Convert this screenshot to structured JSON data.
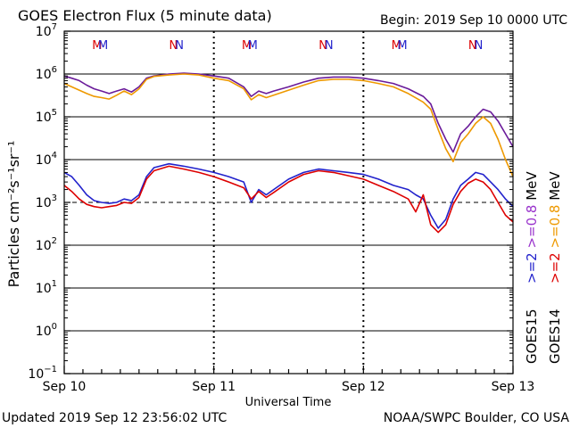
{
  "chart_data": {
    "type": "line",
    "title": "GOES Electron Flux (5 minute data)",
    "begin_label": "Begin: 2019 Sep 10 0000 UTC",
    "updated_label": "Updated 2019 Sep 12 23:56:02 UTC",
    "credit_label": "NOAA/SWPC Boulder, CO USA",
    "xlabel": "Universal Time",
    "ylabel": "Particles cm⁻²s⁻¹sr⁻¹",
    "y_scale": "log",
    "ylim": [
      0.1,
      10000000
    ],
    "xlim": [
      "2019-09-10 00:00",
      "2019-09-13 00:00"
    ],
    "x_ticks": [
      {
        "t": 0,
        "label": "Sep 10"
      },
      {
        "t": 1,
        "label": "Sep 11"
      },
      {
        "t": 2,
        "label": "Sep 12"
      },
      {
        "t": 3,
        "label": "Sep 13"
      }
    ],
    "y_ticks": [
      {
        "exp": -1,
        "base": "10",
        "sup": "−1"
      },
      {
        "exp": 0,
        "base": "10",
        "sup": "0"
      },
      {
        "exp": 1,
        "base": "10",
        "sup": "1"
      },
      {
        "exp": 2,
        "base": "10",
        "sup": "2"
      },
      {
        "exp": 3,
        "base": "10",
        "sup": "3"
      },
      {
        "exp": 4,
        "base": "10",
        "sup": "4"
      },
      {
        "exp": 5,
        "base": "10",
        "sup": "5"
      },
      {
        "exp": 6,
        "base": "10",
        "sup": "6"
      },
      {
        "exp": 7,
        "base": "10",
        "sup": "7"
      }
    ],
    "threshold": {
      "value": 1000,
      "style": "dashed"
    },
    "grid": "horizontal at each decade",
    "noon_markers": [
      {
        "label": "M",
        "color": "#dd0000",
        "t": 0.22
      },
      {
        "label": "M",
        "color": "#2222cc",
        "t": 0.26
      },
      {
        "label": "N",
        "color": "#dd0000",
        "t": 0.73
      },
      {
        "label": "N",
        "color": "#2222cc",
        "t": 0.77
      },
      {
        "label": "M",
        "color": "#dd0000",
        "t": 1.22
      },
      {
        "label": "M",
        "color": "#2222cc",
        "t": 1.26
      },
      {
        "label": "N",
        "color": "#dd0000",
        "t": 1.73
      },
      {
        "label": "N",
        "color": "#2222cc",
        "t": 1.77
      },
      {
        "label": "M",
        "color": "#dd0000",
        "t": 2.22
      },
      {
        "label": "M",
        "color": "#2222cc",
        "t": 2.26
      },
      {
        "label": "N",
        "color": "#dd0000",
        "t": 2.73
      },
      {
        "label": "N",
        "color": "#2222cc",
        "t": 2.77
      }
    ],
    "legend": {
      "placement": "right side, rotated",
      "satellites": [
        {
          "name": "GOES15",
          "color": "#000000"
        },
        {
          "name": "GOES14",
          "color": "#000000"
        }
      ],
      "energies": [
        {
          "text": ">=2",
          "color": "#2222cc"
        },
        {
          "text": ">=0.8",
          "color": "#9933cc"
        },
        {
          "text": ">=2",
          "color": "#dd0000"
        },
        {
          "text": ">=0.8",
          "color": "#ee9900"
        }
      ],
      "unit": "MeV"
    },
    "series": [
      {
        "name": "GOES15 >=0.8 MeV",
        "color": "#6a1b9a",
        "t": [
          0,
          0.05,
          0.1,
          0.15,
          0.2,
          0.25,
          0.3,
          0.35,
          0.4,
          0.45,
          0.5,
          0.55,
          0.6,
          0.7,
          0.8,
          0.9,
          1.0,
          1.1,
          1.2,
          1.25,
          1.3,
          1.35,
          1.4,
          1.5,
          1.6,
          1.7,
          1.8,
          1.9,
          2.0,
          2.1,
          2.2,
          2.3,
          2.4,
          2.45,
          2.5,
          2.55,
          2.6,
          2.65,
          2.7,
          2.75,
          2.8,
          2.85,
          2.9,
          2.95,
          3.0
        ],
        "values": [
          900000,
          800000,
          700000,
          550000,
          450000,
          400000,
          350000,
          400000,
          450000,
          380000,
          500000,
          800000,
          900000,
          1000000,
          1050000,
          1000000,
          900000,
          800000,
          500000,
          300000,
          400000,
          350000,
          400000,
          500000,
          650000,
          800000,
          850000,
          850000,
          800000,
          700000,
          600000,
          450000,
          300000,
          200000,
          70000,
          30000,
          15000,
          40000,
          60000,
          100000,
          150000,
          130000,
          80000,
          40000,
          20000
        ]
      },
      {
        "name": "GOES14 >=0.8 MeV",
        "color": "#ee9900",
        "t": [
          0,
          0.05,
          0.1,
          0.15,
          0.2,
          0.25,
          0.3,
          0.35,
          0.4,
          0.45,
          0.5,
          0.55,
          0.6,
          0.7,
          0.8,
          0.9,
          1.0,
          1.1,
          1.2,
          1.25,
          1.3,
          1.35,
          1.4,
          1.5,
          1.6,
          1.7,
          1.8,
          1.9,
          2.0,
          2.1,
          2.2,
          2.3,
          2.4,
          2.45,
          2.5,
          2.55,
          2.6,
          2.65,
          2.7,
          2.75,
          2.8,
          2.85,
          2.9,
          2.95,
          3.0
        ],
        "values": [
          600000,
          500000,
          420000,
          350000,
          300000,
          280000,
          260000,
          320000,
          400000,
          330000,
          450000,
          750000,
          880000,
          950000,
          1000000,
          950000,
          800000,
          700000,
          450000,
          250000,
          330000,
          280000,
          320000,
          420000,
          550000,
          700000,
          750000,
          750000,
          700000,
          600000,
          500000,
          350000,
          220000,
          150000,
          50000,
          18000,
          9000,
          25000,
          40000,
          70000,
          100000,
          70000,
          30000,
          10000,
          4000
        ]
      },
      {
        "name": "GOES15 >=2 MeV",
        "color": "#2222cc",
        "t": [
          0,
          0.05,
          0.1,
          0.15,
          0.2,
          0.25,
          0.3,
          0.35,
          0.4,
          0.45,
          0.5,
          0.55,
          0.6,
          0.7,
          0.8,
          0.9,
          1.0,
          1.1,
          1.2,
          1.25,
          1.3,
          1.35,
          1.4,
          1.5,
          1.6,
          1.7,
          1.8,
          1.9,
          2.0,
          2.1,
          2.2,
          2.3,
          2.35,
          2.4,
          2.45,
          2.5,
          2.55,
          2.6,
          2.65,
          2.7,
          2.75,
          2.8,
          2.85,
          2.9,
          2.95,
          3.0
        ],
        "values": [
          5000,
          4000,
          2500,
          1500,
          1100,
          1000,
          950,
          1000,
          1200,
          1100,
          1500,
          4000,
          6500,
          8000,
          7000,
          6000,
          5000,
          4000,
          3000,
          1000,
          2000,
          1500,
          2000,
          3500,
          5000,
          6000,
          5500,
          5000,
          4500,
          3500,
          2500,
          2000,
          1500,
          1200,
          500,
          250,
          400,
          1200,
          2500,
          3500,
          5000,
          4500,
          3000,
          2000,
          1200,
          800
        ]
      },
      {
        "name": "GOES14 >=2 MeV",
        "color": "#dd0000",
        "t": [
          0,
          0.05,
          0.1,
          0.15,
          0.2,
          0.25,
          0.3,
          0.35,
          0.4,
          0.45,
          0.5,
          0.55,
          0.6,
          0.7,
          0.8,
          0.9,
          1.0,
          1.1,
          1.2,
          1.25,
          1.3,
          1.35,
          1.4,
          1.5,
          1.6,
          1.7,
          1.8,
          1.9,
          2.0,
          2.1,
          2.2,
          2.3,
          2.35,
          2.4,
          2.45,
          2.5,
          2.55,
          2.6,
          2.65,
          2.7,
          2.75,
          2.8,
          2.85,
          2.9,
          2.95,
          3.0
        ],
        "values": [
          2500,
          1800,
          1200,
          900,
          800,
          750,
          800,
          850,
          1000,
          950,
          1300,
          3500,
          5500,
          7000,
          6000,
          5000,
          4000,
          3000,
          2200,
          1200,
          1800,
          1300,
          1700,
          3000,
          4500,
          5500,
          5000,
          4200,
          3500,
          2500,
          1800,
          1200,
          600,
          1500,
          300,
          200,
          300,
          900,
          1800,
          2800,
          3500,
          3000,
          2000,
          1000,
          500,
          350
        ]
      }
    ]
  }
}
